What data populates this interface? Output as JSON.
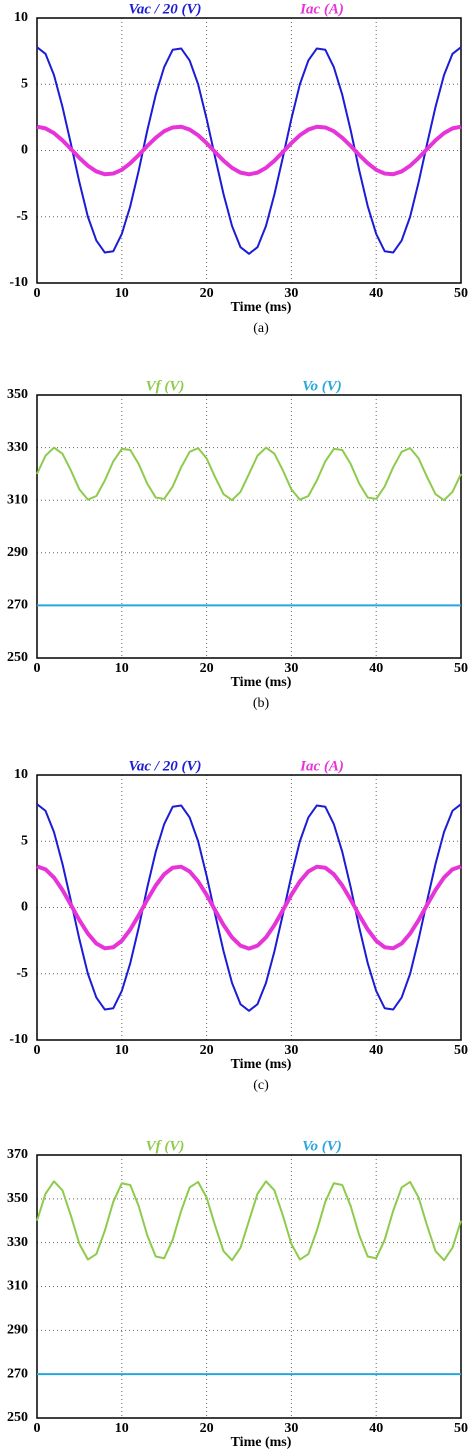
{
  "chart_data": [
    {
      "type": "line",
      "caption": "(a)",
      "xlabel": "Time (ms)",
      "xlim": [
        0,
        50
      ],
      "xticks": [
        0,
        10,
        20,
        30,
        40,
        50
      ],
      "ylim": [
        -10,
        10
      ],
      "yticks": [
        -10,
        -5,
        0,
        5,
        10
      ],
      "grid": true,
      "x": [
        0,
        1,
        2,
        3,
        4,
        5,
        6,
        7,
        8,
        9,
        10,
        11,
        12,
        13,
        14,
        15,
        16,
        17,
        18,
        19,
        20,
        21,
        22,
        23,
        24,
        25,
        26,
        27,
        28,
        29,
        30,
        31,
        32,
        33,
        34,
        35,
        36,
        37,
        38,
        39,
        40,
        41,
        42,
        43,
        44,
        45,
        46,
        47,
        48,
        49,
        50
      ],
      "series": [
        {
          "name": "Vac / 20 (V)",
          "color": "#1c1cd6",
          "values": [
            7.8,
            7.3,
            5.7,
            3.3,
            0.5,
            -2.4,
            -5.0,
            -6.8,
            -7.7,
            -7.6,
            -6.3,
            -4.2,
            -1.5,
            1.5,
            4.2,
            6.3,
            7.6,
            7.7,
            6.8,
            5.0,
            2.4,
            -0.5,
            -3.3,
            -5.7,
            -7.3,
            -7.8,
            -7.3,
            -5.7,
            -3.3,
            -0.5,
            2.4,
            5.0,
            6.8,
            7.7,
            7.6,
            6.3,
            4.2,
            1.5,
            -1.5,
            -4.2,
            -6.3,
            -7.6,
            -7.7,
            -6.8,
            -5.0,
            -2.4,
            0.5,
            3.3,
            5.7,
            7.3,
            7.8
          ]
        },
        {
          "name": "Iac (A)",
          "color": "#e634d9",
          "values": [
            1.8,
            1.67,
            1.31,
            0.77,
            0.11,
            -0.56,
            -1.15,
            -1.58,
            -1.79,
            -1.74,
            -1.46,
            -0.96,
            -0.34,
            0.34,
            0.96,
            1.46,
            1.74,
            1.79,
            1.58,
            1.15,
            0.56,
            -0.11,
            -0.77,
            -1.31,
            -1.67,
            -1.8,
            -1.67,
            -1.31,
            -0.77,
            -0.11,
            0.56,
            1.15,
            1.58,
            1.79,
            1.74,
            1.46,
            0.96,
            0.34,
            -0.34,
            -0.96,
            -1.46,
            -1.74,
            -1.79,
            -1.58,
            -1.15,
            -0.56,
            0.11,
            0.77,
            1.31,
            1.67,
            1.8
          ]
        }
      ]
    },
    {
      "type": "line",
      "caption": "(b)",
      "xlabel": "Time (ms)",
      "xlim": [
        0,
        50
      ],
      "xticks": [
        0,
        10,
        20,
        30,
        40,
        50
      ],
      "ylim": [
        250,
        350
      ],
      "yticks": [
        250,
        270,
        290,
        310,
        330,
        350
      ],
      "grid": true,
      "x": [
        0,
        1,
        2,
        3,
        4,
        5,
        6,
        7,
        8,
        9,
        10,
        11,
        12,
        13,
        14,
        15,
        16,
        17,
        18,
        19,
        20,
        21,
        22,
        23,
        24,
        25,
        26,
        27,
        28,
        29,
        30,
        31,
        32,
        33,
        34,
        35,
        36,
        37,
        38,
        39,
        40,
        41,
        42,
        43,
        44,
        45,
        46,
        47,
        48,
        49,
        50
      ],
      "series": [
        {
          "name": "Vf (V)",
          "color": "#8dcb4c",
          "values": [
            320,
            326.9,
            330,
            327.7,
            321.3,
            314.1,
            310.2,
            311.6,
            317.5,
            324.8,
            329.5,
            329.1,
            323.7,
            316.3,
            311,
            310.5,
            315.2,
            322.5,
            328.4,
            329.8,
            325.9,
            318.8,
            312.3,
            310,
            313.2,
            320,
            326.9,
            330,
            327.7,
            321.3,
            314.1,
            310.2,
            311.6,
            317.5,
            324.8,
            329.5,
            329.1,
            323.7,
            316.3,
            311,
            310.5,
            315.2,
            322.5,
            328.4,
            329.8,
            325.9,
            318.8,
            312.3,
            310,
            313.2,
            320
          ]
        },
        {
          "name": "Vo (V)",
          "color": "#2aa6de",
          "values": [
            270,
            270,
            270,
            270,
            270,
            270,
            270,
            270,
            270,
            270,
            270,
            270,
            270,
            270,
            270,
            270,
            270,
            270,
            270,
            270,
            270,
            270,
            270,
            270,
            270,
            270,
            270,
            270,
            270,
            270,
            270,
            270,
            270,
            270,
            270,
            270,
            270,
            270,
            270,
            270,
            270,
            270,
            270,
            270,
            270,
            270,
            270,
            270,
            270,
            270,
            270
          ]
        }
      ]
    },
    {
      "type": "line",
      "caption": "(c)",
      "xlabel": "Time (ms)",
      "xlim": [
        0,
        50
      ],
      "xticks": [
        0,
        10,
        20,
        30,
        40,
        50
      ],
      "ylim": [
        -10,
        10
      ],
      "yticks": [
        -10,
        -5,
        0,
        5,
        10
      ],
      "grid": true,
      "x": [
        0,
        1,
        2,
        3,
        4,
        5,
        6,
        7,
        8,
        9,
        10,
        11,
        12,
        13,
        14,
        15,
        16,
        17,
        18,
        19,
        20,
        21,
        22,
        23,
        24,
        25,
        26,
        27,
        28,
        29,
        30,
        31,
        32,
        33,
        34,
        35,
        36,
        37,
        38,
        39,
        40,
        41,
        42,
        43,
        44,
        45,
        46,
        47,
        48,
        49,
        50
      ],
      "series": [
        {
          "name": "Vac / 20 (V)",
          "color": "#1c1cd6",
          "values": [
            7.8,
            7.3,
            5.7,
            3.3,
            0.5,
            -2.4,
            -5.0,
            -6.8,
            -7.7,
            -7.6,
            -6.3,
            -4.2,
            -1.5,
            1.5,
            4.2,
            6.3,
            7.6,
            7.7,
            6.8,
            5.0,
            2.4,
            -0.5,
            -3.3,
            -5.7,
            -7.3,
            -7.8,
            -7.3,
            -5.7,
            -3.3,
            -0.5,
            2.4,
            5.0,
            6.8,
            7.7,
            7.6,
            6.3,
            4.2,
            1.5,
            -1.5,
            -4.2,
            -6.3,
            -7.6,
            -7.7,
            -6.8,
            -5.0,
            -2.4,
            0.5,
            3.3,
            5.7,
            7.3,
            7.8
          ]
        },
        {
          "name": "Iac (A)",
          "color": "#e634d9",
          "values": [
            3.1,
            2.88,
            2.26,
            1.32,
            0.2,
            -0.96,
            -1.97,
            -2.72,
            -3.08,
            -3.0,
            -2.51,
            -1.66,
            -0.58,
            0.58,
            1.66,
            2.51,
            3.0,
            3.08,
            2.72,
            1.97,
            0.96,
            -0.2,
            -1.32,
            -2.26,
            -2.88,
            -3.1,
            -2.88,
            -2.26,
            -1.32,
            -0.2,
            0.96,
            1.97,
            2.72,
            3.08,
            3.0,
            2.51,
            1.66,
            0.58,
            -0.58,
            -1.66,
            -2.51,
            -3.0,
            -3.08,
            -2.72,
            -1.97,
            -0.96,
            0.2,
            1.32,
            2.26,
            2.88,
            3.1
          ]
        }
      ]
    },
    {
      "type": "line",
      "xlabel": "Time (ms)",
      "xlim": [
        0,
        50
      ],
      "xticks": [
        0,
        10,
        20,
        30,
        40,
        50
      ],
      "ylim": [
        250,
        370
      ],
      "yticks": [
        250,
        270,
        290,
        310,
        330,
        350,
        370
      ],
      "grid": true,
      "x": [
        0,
        1,
        2,
        3,
        4,
        5,
        6,
        7,
        8,
        9,
        10,
        11,
        12,
        13,
        14,
        15,
        16,
        17,
        18,
        19,
        20,
        21,
        22,
        23,
        24,
        25,
        26,
        27,
        28,
        29,
        30,
        31,
        32,
        33,
        34,
        35,
        36,
        37,
        38,
        39,
        40,
        41,
        42,
        43,
        44,
        45,
        46,
        47,
        48,
        49,
        50
      ],
      "series": [
        {
          "name": "Vf (V)",
          "color": "#8dcb4c",
          "values": [
            340,
            352.3,
            358,
            353.9,
            342.3,
            329.4,
            322.3,
            324.8,
            335.5,
            348.7,
            357.1,
            356.3,
            346.6,
            333.4,
            323.7,
            322.9,
            331.3,
            344.5,
            355.2,
            357.7,
            350.6,
            337.8,
            326.1,
            322,
            327.7,
            340,
            352.3,
            358,
            353.9,
            342.3,
            329.4,
            322.3,
            324.8,
            335.5,
            348.7,
            357.1,
            356.3,
            346.6,
            333.4,
            323.7,
            322.9,
            331.3,
            344.5,
            355.2,
            357.7,
            350.6,
            337.8,
            326.1,
            322,
            327.7,
            340
          ]
        },
        {
          "name": "Vo (V)",
          "color": "#2aa6de",
          "values": [
            270,
            270,
            270,
            270,
            270,
            270,
            270,
            270,
            270,
            270,
            270,
            270,
            270,
            270,
            270,
            270,
            270,
            270,
            270,
            270,
            270,
            270,
            270,
            270,
            270,
            270,
            270,
            270,
            270,
            270,
            270,
            270,
            270,
            270,
            270,
            270,
            270,
            270,
            270,
            270,
            270,
            270,
            270,
            270,
            270,
            270,
            270,
            270,
            270,
            270,
            270
          ]
        }
      ]
    }
  ]
}
